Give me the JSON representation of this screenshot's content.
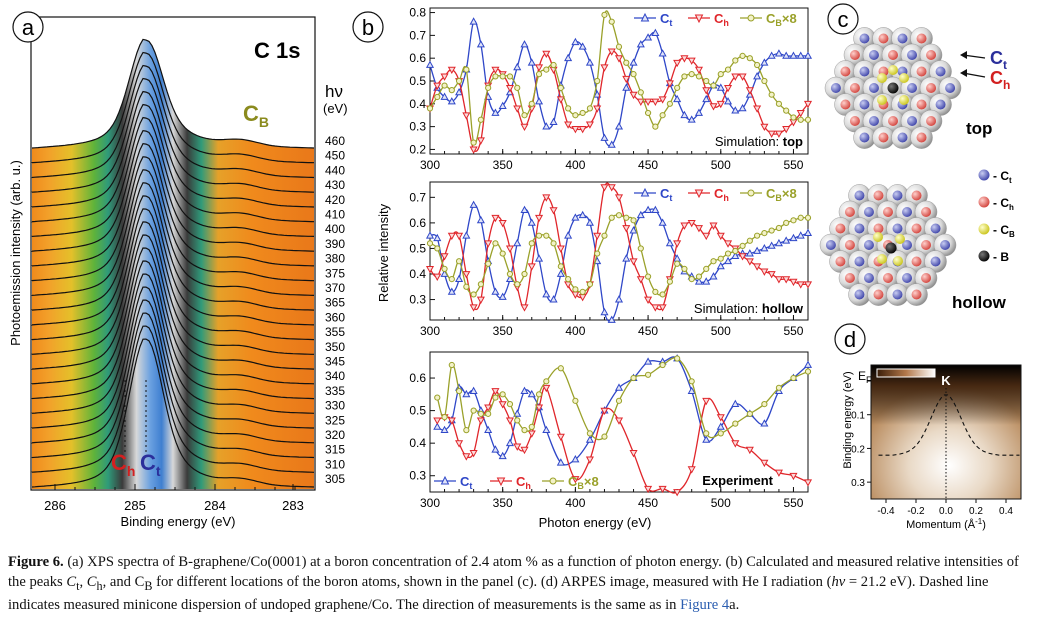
{
  "panels": {
    "a": {
      "label": "a",
      "title": "C 1s",
      "hv_label": "hν",
      "hv_unit": "(eV)",
      "cb_label": "C",
      "cb_sub": "B",
      "ch_label": "C",
      "ch_sub": "h",
      "ct_label": "C",
      "ct_sub": "t",
      "ylabel": "Photoemission intensity (arb. u.)",
      "xlabel": "Binding energy (eV)",
      "xticks": [
        "286",
        "285",
        "284",
        "283"
      ],
      "hv_values": [
        "460",
        "450",
        "440",
        "430",
        "420",
        "410",
        "400",
        "390",
        "380",
        "375",
        "370",
        "365",
        "360",
        "355",
        "350",
        "345",
        "340",
        "335",
        "330",
        "325",
        "320",
        "315",
        "310",
        "305"
      ]
    },
    "b": {
      "label": "b",
      "ylabel": "Relative intensity",
      "xlabel": "Photon energy (eV)",
      "legend": {
        "ct": "C",
        "ct_sub": "t",
        "ch": "C",
        "ch_sub": "h",
        "cb": "C",
        "cb_sub": "B",
        "cb_mult": "×8"
      },
      "sim_top_prefix": "Simulation: ",
      "sim_top_bold": "top",
      "sim_hollow_prefix": "Simulation: ",
      "sim_hollow_bold": "hollow",
      "experiment": "Experiment"
    },
    "c": {
      "label": "c",
      "ct": "C",
      "ct_sub": "t",
      "ch": "C",
      "ch_sub": "h",
      "top": "top",
      "hollow": "hollow",
      "legend": [
        {
          "text": "- C",
          "sub": "t",
          "color": "#6b6bc4"
        },
        {
          "text": "- C",
          "sub": "h",
          "color": "#e06a6a"
        },
        {
          "text": "- C",
          "sub": "B",
          "color": "#e8e43a"
        },
        {
          "text": "- B",
          "sub": "",
          "color": "#111111"
        }
      ]
    },
    "d": {
      "label": "d",
      "k_label": "K",
      "ef_label": "E",
      "ef_sub": "F",
      "ylabel": "Binding energy (eV)",
      "xlabel": "Momentum (Å",
      "xlabel_sup": "-1",
      "xlabel_end": ")",
      "xticks": [
        "-0.4",
        "-0.2",
        "0.0",
        "0.2",
        "0.4"
      ],
      "yticks": [
        "0.1",
        "0.2",
        "0.3"
      ]
    }
  },
  "chart_data": [
    {
      "type": "line",
      "title": "Simulation: top",
      "xlabel": "",
      "ylabel": "Relative intensity",
      "xlim": [
        300,
        560
      ],
      "ylim": [
        0.18,
        0.82
      ],
      "yticks": [
        0.2,
        0.3,
        0.4,
        0.5,
        0.6,
        0.7,
        0.8
      ],
      "xticks": [
        300,
        350,
        400,
        450,
        500,
        550
      ],
      "x": [
        300,
        305,
        310,
        315,
        320,
        325,
        330,
        335,
        340,
        345,
        350,
        355,
        360,
        365,
        370,
        375,
        380,
        385,
        390,
        395,
        400,
        405,
        410,
        415,
        420,
        425,
        430,
        435,
        440,
        445,
        450,
        455,
        460,
        465,
        470,
        475,
        480,
        485,
        490,
        495,
        500,
        505,
        510,
        515,
        520,
        525,
        530,
        535,
        540,
        545,
        550,
        555,
        560
      ],
      "series": [
        {
          "name": "Ct",
          "color": "#2f47c8",
          "marker": "triangle-up",
          "values": [
            0.57,
            0.47,
            0.43,
            0.41,
            0.45,
            0.55,
            0.76,
            0.66,
            0.43,
            0.36,
            0.39,
            0.45,
            0.56,
            0.66,
            0.58,
            0.41,
            0.3,
            0.32,
            0.48,
            0.6,
            0.67,
            0.65,
            0.58,
            0.44,
            0.25,
            0.22,
            0.3,
            0.47,
            0.58,
            0.66,
            0.69,
            0.71,
            0.62,
            0.49,
            0.42,
            0.35,
            0.33,
            0.36,
            0.42,
            0.48,
            0.47,
            0.41,
            0.37,
            0.38,
            0.44,
            0.52,
            0.58,
            0.61,
            0.62,
            0.61,
            0.61,
            0.61,
            0.61
          ]
        },
        {
          "name": "Ch",
          "color": "#e0262b",
          "marker": "triangle-down",
          "values": [
            0.38,
            0.48,
            0.52,
            0.55,
            0.5,
            0.35,
            0.2,
            0.24,
            0.48,
            0.55,
            0.53,
            0.47,
            0.38,
            0.3,
            0.38,
            0.56,
            0.62,
            0.55,
            0.42,
            0.31,
            0.29,
            0.29,
            0.31,
            0.38,
            0.56,
            0.63,
            0.6,
            0.51,
            0.44,
            0.41,
            0.41,
            0.41,
            0.42,
            0.49,
            0.58,
            0.6,
            0.59,
            0.55,
            0.46,
            0.39,
            0.4,
            0.47,
            0.52,
            0.52,
            0.46,
            0.38,
            0.3,
            0.27,
            0.27,
            0.29,
            0.32,
            0.36,
            0.4
          ]
        },
        {
          "name": "CB×8",
          "color": "#9aa12a",
          "marker": "circle",
          "values": [
            0.38,
            0.43,
            0.48,
            0.46,
            0.5,
            0.55,
            0.23,
            0.33,
            0.47,
            0.52,
            0.52,
            0.52,
            0.47,
            0.35,
            0.4,
            0.53,
            0.55,
            0.57,
            0.47,
            0.38,
            0.35,
            0.36,
            0.38,
            0.5,
            0.79,
            0.76,
            0.65,
            0.58,
            0.53,
            0.45,
            0.36,
            0.3,
            0.35,
            0.4,
            0.47,
            0.52,
            0.53,
            0.52,
            0.5,
            0.48,
            0.53,
            0.55,
            0.59,
            0.61,
            0.6,
            0.57,
            0.5,
            0.44,
            0.4,
            0.37,
            0.34,
            0.33,
            0.33
          ]
        }
      ]
    },
    {
      "type": "line",
      "title": "Simulation: hollow",
      "xlabel": "",
      "ylabel": "Relative intensity",
      "xlim": [
        300,
        560
      ],
      "ylim": [
        0.22,
        0.76
      ],
      "yticks": [
        0.3,
        0.4,
        0.5,
        0.6,
        0.7
      ],
      "xticks": [
        300,
        350,
        400,
        450,
        500,
        550
      ],
      "x": [
        300,
        305,
        310,
        315,
        320,
        325,
        330,
        335,
        340,
        345,
        350,
        355,
        360,
        365,
        370,
        375,
        380,
        385,
        390,
        395,
        400,
        405,
        410,
        415,
        420,
        425,
        430,
        435,
        440,
        445,
        450,
        455,
        460,
        465,
        470,
        475,
        480,
        485,
        490,
        495,
        500,
        505,
        510,
        515,
        520,
        525,
        530,
        535,
        540,
        545,
        550,
        555,
        560
      ],
      "series": [
        {
          "name": "Ct",
          "color": "#2f47c8",
          "marker": "triangle-up",
          "values": [
            0.55,
            0.54,
            0.4,
            0.33,
            0.38,
            0.55,
            0.67,
            0.61,
            0.45,
            0.33,
            0.31,
            0.38,
            0.52,
            0.65,
            0.6,
            0.46,
            0.32,
            0.3,
            0.4,
            0.55,
            0.62,
            0.63,
            0.6,
            0.45,
            0.25,
            0.22,
            0.3,
            0.46,
            0.57,
            0.63,
            0.65,
            0.65,
            0.6,
            0.52,
            0.46,
            0.41,
            0.39,
            0.37,
            0.37,
            0.39,
            0.43,
            0.45,
            0.47,
            0.48,
            0.48,
            0.49,
            0.5,
            0.51,
            0.52,
            0.53,
            0.54,
            0.55,
            0.56
          ]
        },
        {
          "name": "Ch",
          "color": "#e0262b",
          "marker": "triangle-down",
          "values": [
            0.42,
            0.39,
            0.47,
            0.55,
            0.55,
            0.4,
            0.27,
            0.3,
            0.52,
            0.62,
            0.6,
            0.5,
            0.35,
            0.27,
            0.43,
            0.62,
            0.7,
            0.65,
            0.5,
            0.36,
            0.32,
            0.31,
            0.36,
            0.55,
            0.74,
            0.74,
            0.7,
            0.58,
            0.45,
            0.38,
            0.3,
            0.27,
            0.27,
            0.38,
            0.52,
            0.59,
            0.6,
            0.58,
            0.55,
            0.59,
            0.55,
            0.52,
            0.5,
            0.47,
            0.45,
            0.43,
            0.41,
            0.4,
            0.38,
            0.38,
            0.37,
            0.36,
            0.36
          ]
        },
        {
          "name": "CB×8",
          "color": "#9aa12a",
          "marker": "circle",
          "values": [
            0.52,
            0.5,
            0.42,
            0.38,
            0.45,
            0.35,
            0.32,
            0.36,
            0.44,
            0.52,
            0.48,
            0.4,
            0.36,
            0.4,
            0.52,
            0.55,
            0.55,
            0.52,
            0.43,
            0.38,
            0.34,
            0.33,
            0.36,
            0.48,
            0.55,
            0.62,
            0.63,
            0.62,
            0.61,
            0.5,
            0.39,
            0.33,
            0.32,
            0.37,
            0.44,
            0.42,
            0.38,
            0.39,
            0.42,
            0.45,
            0.46,
            0.48,
            0.49,
            0.51,
            0.53,
            0.55,
            0.56,
            0.57,
            0.58,
            0.6,
            0.61,
            0.62,
            0.62
          ]
        }
      ]
    },
    {
      "type": "line",
      "title": "Experiment",
      "xlabel": "Photon energy (eV)",
      "ylabel": "Relative intensity",
      "xlim": [
        300,
        560
      ],
      "ylim": [
        0.25,
        0.68
      ],
      "yticks": [
        0.3,
        0.4,
        0.5,
        0.6
      ],
      "xticks": [
        300,
        350,
        400,
        450,
        500,
        550
      ],
      "x": [
        305,
        310,
        315,
        320,
        325,
        330,
        335,
        340,
        345,
        350,
        355,
        360,
        365,
        370,
        375,
        380,
        390,
        400,
        410,
        420,
        430,
        440,
        450,
        460,
        470,
        480,
        490,
        500,
        510,
        520,
        530,
        540,
        550,
        560
      ],
      "series": [
        {
          "name": "Ct",
          "color": "#2f47c8",
          "marker": "triangle-up",
          "values": [
            0.45,
            0.44,
            0.47,
            0.57,
            0.55,
            0.56,
            0.5,
            0.44,
            0.38,
            0.36,
            0.4,
            0.49,
            0.56,
            0.55,
            0.51,
            0.44,
            0.34,
            0.35,
            0.41,
            0.5,
            0.57,
            0.6,
            0.65,
            0.65,
            0.66,
            0.56,
            0.41,
            0.45,
            0.52,
            0.49,
            0.46,
            0.56,
            0.6,
            0.64
          ]
        },
        {
          "name": "Ch",
          "color": "#e0262b",
          "marker": "triangle-down",
          "values": [
            0.47,
            0.48,
            0.47,
            0.4,
            0.36,
            0.37,
            0.47,
            0.51,
            0.56,
            0.52,
            0.47,
            0.39,
            0.38,
            0.43,
            0.51,
            0.57,
            0.42,
            0.29,
            0.35,
            0.5,
            0.47,
            0.37,
            0.26,
            0.26,
            0.25,
            0.32,
            0.53,
            0.48,
            0.4,
            0.38,
            0.34,
            0.31,
            0.3,
            0.28
          ]
        },
        {
          "name": "CB×8",
          "color": "#9aa12a",
          "marker": "circle",
          "values": [
            0.54,
            0.48,
            0.64,
            0.56,
            0.44,
            0.5,
            0.49,
            0.49,
            0.54,
            0.55,
            0.52,
            0.47,
            0.44,
            0.45,
            0.55,
            0.59,
            0.63,
            0.53,
            0.43,
            0.42,
            0.53,
            0.6,
            0.61,
            0.64,
            0.66,
            0.59,
            0.43,
            0.43,
            0.46,
            0.49,
            0.52,
            0.57,
            0.6,
            0.62
          ]
        }
      ]
    }
  ]
}
